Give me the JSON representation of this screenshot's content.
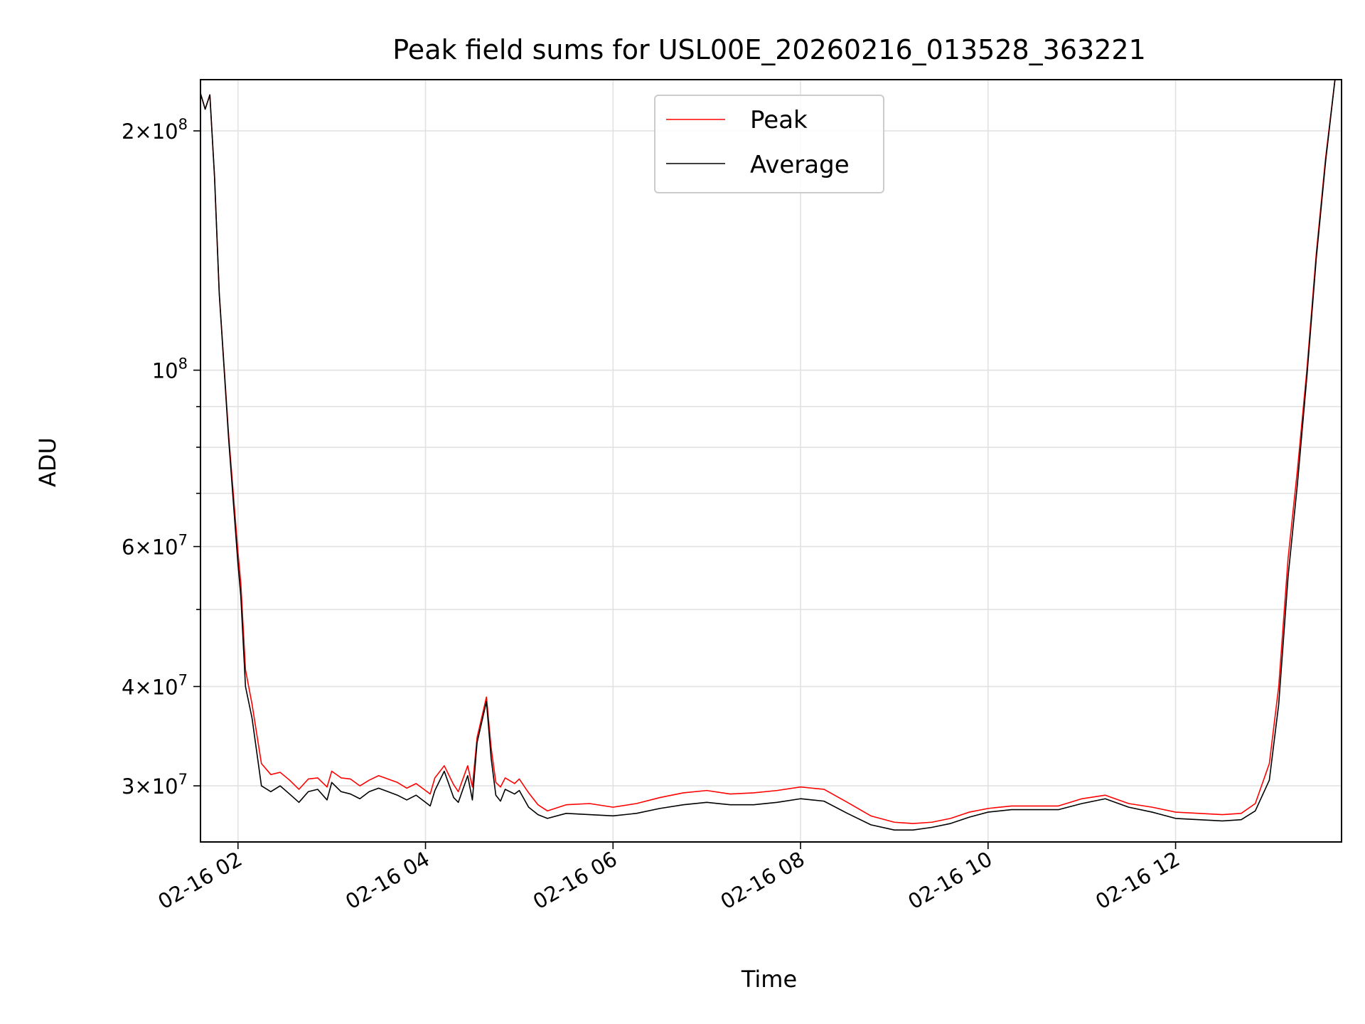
{
  "chart_data": {
    "type": "line",
    "title": "Peak field sums for USL00E_20260216_013528_363221",
    "xlabel": "Time",
    "ylabel": "ADU",
    "y_scale": "log",
    "ylim": [
      25500000,
      232000000
    ],
    "x_unit": "hours after 2026-02-16 00:00",
    "xlim": [
      1.6,
      13.77
    ],
    "grid": true,
    "legend_position": "upper center",
    "x_ticks": [
      {
        "value": 2,
        "label": "02-16 02"
      },
      {
        "value": 4,
        "label": "02-16 04"
      },
      {
        "value": 6,
        "label": "02-16 06"
      },
      {
        "value": 8,
        "label": "02-16 08"
      },
      {
        "value": 10,
        "label": "02-16 10"
      },
      {
        "value": 12,
        "label": "02-16 12"
      }
    ],
    "y_ticks": [
      {
        "value": 30000000,
        "mantissa": "3",
        "exponent": "7"
      },
      {
        "value": 40000000,
        "mantissa": "4",
        "exponent": "7"
      },
      {
        "value": 60000000,
        "mantissa": "6",
        "exponent": "7"
      },
      {
        "value": 100000000,
        "mantissa": "",
        "exponent": "8"
      },
      {
        "value": 200000000,
        "mantissa": "2",
        "exponent": "8"
      }
    ],
    "y_minor_ticks": [
      50000000,
      70000000,
      80000000,
      90000000
    ],
    "series": [
      {
        "name": "Peak",
        "color": "#ff0000",
        "x": [
          1.6,
          1.65,
          1.7,
          1.75,
          1.8,
          1.9,
          2.0,
          2.03,
          2.08,
          2.15,
          2.25,
          2.35,
          2.45,
          2.55,
          2.65,
          2.75,
          2.85,
          2.95,
          3.0,
          3.1,
          3.2,
          3.3,
          3.4,
          3.5,
          3.6,
          3.7,
          3.8,
          3.9,
          4.0,
          4.05,
          4.1,
          4.2,
          4.3,
          4.35,
          4.45,
          4.5,
          4.55,
          4.65,
          4.7,
          4.75,
          4.8,
          4.85,
          4.95,
          5.0,
          5.1,
          5.2,
          5.3,
          5.5,
          5.75,
          6.0,
          6.25,
          6.5,
          6.75,
          7.0,
          7.25,
          7.5,
          7.75,
          8.0,
          8.25,
          8.5,
          8.75,
          9.0,
          9.2,
          9.4,
          9.6,
          9.8,
          10.0,
          10.25,
          10.5,
          10.75,
          11.0,
          11.25,
          11.5,
          11.75,
          12.0,
          12.25,
          12.5,
          12.7,
          12.85,
          13.0,
          13.1,
          13.2,
          13.3,
          13.4,
          13.5,
          13.6,
          13.7,
          13.77
        ],
        "y": [
          223000000,
          213000000,
          222000000,
          175000000,
          125000000,
          83000000,
          59000000,
          54000000,
          42000000,
          38000000,
          32000000,
          31000000,
          31200000,
          30500000,
          29700000,
          30600000,
          30700000,
          29900000,
          31300000,
          30700000,
          30600000,
          30000000,
          30500000,
          30900000,
          30600000,
          30300000,
          29800000,
          30200000,
          29600000,
          29300000,
          30700000,
          31800000,
          30100000,
          29500000,
          31800000,
          29900000,
          34500000,
          38800000,
          33500000,
          30300000,
          29900000,
          30700000,
          30200000,
          30600000,
          29400000,
          28400000,
          27900000,
          28400000,
          28500000,
          28200000,
          28500000,
          29000000,
          29400000,
          29600000,
          29300000,
          29400000,
          29600000,
          29900000,
          29700000,
          28600000,
          27500000,
          27000000,
          26900000,
          27000000,
          27300000,
          27800000,
          28100000,
          28300000,
          28300000,
          28300000,
          28900000,
          29200000,
          28500000,
          28200000,
          27800000,
          27700000,
          27600000,
          27700000,
          28500000,
          32000000,
          40000000,
          58000000,
          75000000,
          100000000,
          140000000,
          185000000,
          232000000,
          232000000
        ]
      },
      {
        "name": "Average",
        "color": "#000000",
        "x": [
          1.6,
          1.65,
          1.7,
          1.75,
          1.8,
          1.9,
          2.0,
          2.03,
          2.08,
          2.15,
          2.25,
          2.35,
          2.45,
          2.55,
          2.65,
          2.75,
          2.85,
          2.95,
          3.0,
          3.1,
          3.2,
          3.3,
          3.4,
          3.5,
          3.6,
          3.7,
          3.8,
          3.9,
          4.0,
          4.05,
          4.1,
          4.2,
          4.3,
          4.35,
          4.45,
          4.5,
          4.55,
          4.65,
          4.7,
          4.75,
          4.8,
          4.85,
          4.95,
          5.0,
          5.1,
          5.2,
          5.3,
          5.5,
          5.75,
          6.0,
          6.25,
          6.5,
          6.75,
          7.0,
          7.25,
          7.5,
          7.75,
          8.0,
          8.25,
          8.5,
          8.75,
          9.0,
          9.2,
          9.4,
          9.6,
          9.8,
          10.0,
          10.25,
          10.5,
          10.75,
          11.0,
          11.25,
          11.5,
          11.75,
          12.0,
          12.25,
          12.5,
          12.7,
          12.85,
          13.0,
          13.1,
          13.2,
          13.3,
          13.4,
          13.5,
          13.6,
          13.7,
          13.77
        ],
        "y": [
          223000000,
          213000000,
          222000000,
          175000000,
          125000000,
          82000000,
          57000000,
          52000000,
          40000000,
          36500000,
          30000000,
          29500000,
          30000000,
          29300000,
          28600000,
          29500000,
          29700000,
          28800000,
          30300000,
          29500000,
          29300000,
          28900000,
          29500000,
          29800000,
          29500000,
          29200000,
          28800000,
          29200000,
          28600000,
          28300000,
          29600000,
          31300000,
          29000000,
          28600000,
          30900000,
          28800000,
          34000000,
          38300000,
          32500000,
          29200000,
          28700000,
          29700000,
          29300000,
          29600000,
          28200000,
          27600000,
          27300000,
          27700000,
          27600000,
          27500000,
          27700000,
          28100000,
          28400000,
          28600000,
          28400000,
          28400000,
          28600000,
          28900000,
          28700000,
          27700000,
          26800000,
          26400000,
          26400000,
          26600000,
          26900000,
          27400000,
          27800000,
          28000000,
          28000000,
          28000000,
          28500000,
          28900000,
          28200000,
          27800000,
          27300000,
          27200000,
          27100000,
          27200000,
          27900000,
          30500000,
          38000000,
          55000000,
          72000000,
          98000000,
          138000000,
          183000000,
          232000000,
          232000000
        ]
      }
    ]
  }
}
